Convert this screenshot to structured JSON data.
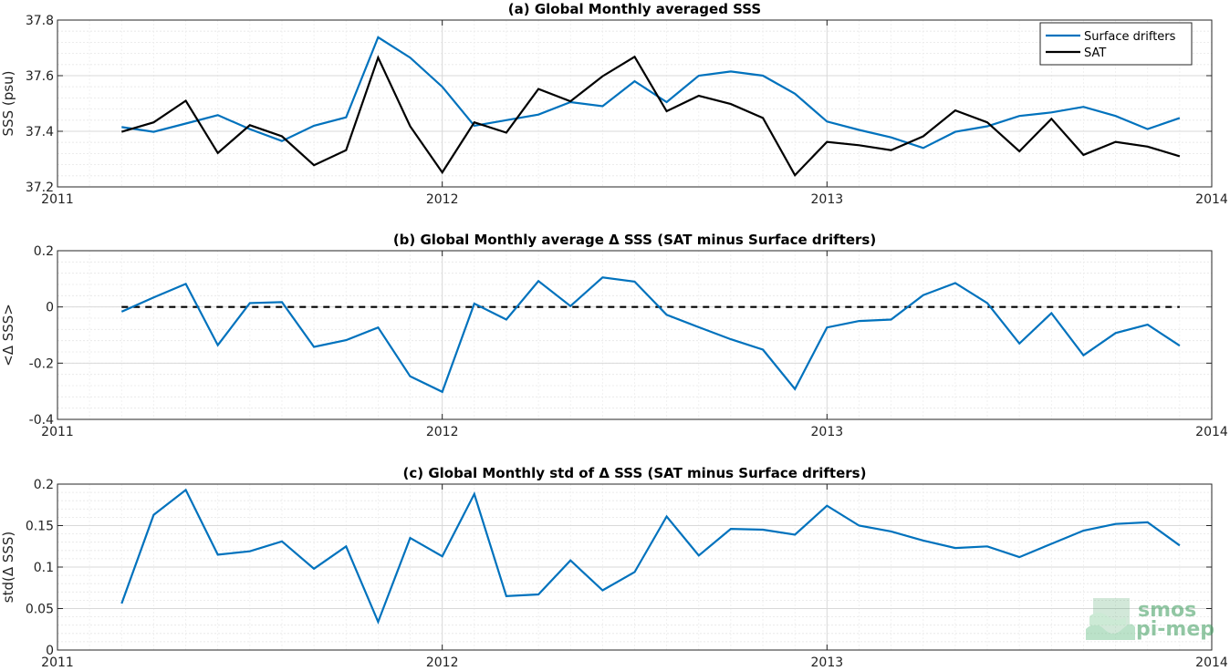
{
  "logo": {
    "line1": "smos",
    "line2": "pi-mep"
  },
  "colors": {
    "drifters": "#0072BD",
    "sat": "#000000",
    "zero_line": "#000000",
    "grid": "#d9d9d9",
    "logo": "#3a9a5a"
  },
  "chart_data": [
    {
      "type": "line",
      "title": "(a) Global Monthly averaged SSS",
      "xlabel": "",
      "ylabel": "SSS (psu)",
      "xlim": [
        2011,
        2014
      ],
      "ylim": [
        37.2,
        37.8
      ],
      "x_ticks": [
        2011,
        2012,
        2013,
        2014
      ],
      "y_ticks": [
        37.2,
        37.4,
        37.6,
        37.8
      ],
      "grid": true,
      "legend": "top-right",
      "x": [
        "2011-03",
        "2011-04",
        "2011-05",
        "2011-06",
        "2011-07",
        "2011-08",
        "2011-09",
        "2011-10",
        "2011-11",
        "2011-12",
        "2012-01",
        "2012-02",
        "2012-03",
        "2012-04",
        "2012-05",
        "2012-06",
        "2012-07",
        "2012-08",
        "2012-09",
        "2012-10",
        "2012-11",
        "2012-12",
        "2013-01",
        "2013-02",
        "2013-03",
        "2013-04",
        "2013-05",
        "2013-06",
        "2013-07",
        "2013-08",
        "2013-09",
        "2013-10",
        "2013-11",
        "2013-12"
      ],
      "series": [
        {
          "name": "Surface drifters",
          "color": "#0072BD",
          "values": [
            37.415,
            37.398,
            37.428,
            37.458,
            37.408,
            37.365,
            37.42,
            37.45,
            37.738,
            37.665,
            37.56,
            37.42,
            37.44,
            37.46,
            37.505,
            37.49,
            37.58,
            37.505,
            37.6,
            37.615,
            37.6,
            37.535,
            37.435,
            37.405,
            37.378,
            37.34,
            37.398,
            37.418,
            37.455,
            37.468,
            37.488,
            37.455,
            37.408,
            37.448
          ]
        },
        {
          "name": "SAT",
          "color": "#000000",
          "values": [
            37.398,
            37.432,
            37.51,
            37.322,
            37.422,
            37.382,
            37.278,
            37.332,
            37.665,
            37.418,
            37.252,
            37.432,
            37.395,
            37.552,
            37.508,
            37.598,
            37.668,
            37.472,
            37.528,
            37.498,
            37.448,
            37.242,
            37.362,
            37.35,
            37.332,
            37.382,
            37.475,
            37.432,
            37.328,
            37.445,
            37.315,
            37.362,
            37.345,
            37.31
          ]
        }
      ]
    },
    {
      "type": "line",
      "title": "(b) Global Monthly average Δ SSS (SAT minus Surface drifters)",
      "xlabel": "",
      "ylabel": "<Δ SSS>",
      "xlim": [
        2011,
        2014
      ],
      "ylim": [
        -0.4,
        0.2
      ],
      "x_ticks": [
        2011,
        2012,
        2013,
        2014
      ],
      "y_ticks": [
        -0.4,
        -0.2,
        0,
        0.2
      ],
      "grid": true,
      "reference_line": 0,
      "x": [
        "2011-03",
        "2011-04",
        "2011-05",
        "2011-06",
        "2011-07",
        "2011-08",
        "2011-09",
        "2011-10",
        "2011-11",
        "2011-12",
        "2012-01",
        "2012-02",
        "2012-03",
        "2012-04",
        "2012-05",
        "2012-06",
        "2012-07",
        "2012-08",
        "2012-09",
        "2012-10",
        "2012-11",
        "2012-12",
        "2013-01",
        "2013-02",
        "2013-03",
        "2013-04",
        "2013-05",
        "2013-06",
        "2013-07",
        "2013-08",
        "2013-09",
        "2013-10",
        "2013-11",
        "2013-12"
      ],
      "series": [
        {
          "color": "#0072BD",
          "values": [
            -0.017,
            0.034,
            0.082,
            -0.136,
            0.014,
            0.017,
            -0.142,
            -0.118,
            -0.073,
            -0.247,
            -0.302,
            0.012,
            -0.045,
            0.092,
            0.003,
            0.105,
            0.09,
            -0.028,
            -0.072,
            -0.115,
            -0.152,
            -0.292,
            -0.073,
            -0.05,
            -0.045,
            0.042,
            0.085,
            0.014,
            -0.13,
            -0.022,
            -0.172,
            -0.093,
            -0.063,
            -0.138
          ]
        }
      ]
    },
    {
      "type": "line",
      "title": "(c) Global Monthly std of Δ SSS (SAT minus Surface drifters)",
      "xlabel": "",
      "ylabel": "std(Δ SSS)",
      "xlim": [
        2011,
        2014
      ],
      "ylim": [
        0,
        0.2
      ],
      "x_ticks": [
        2011,
        2012,
        2013,
        2014
      ],
      "y_ticks": [
        0,
        0.05,
        0.1,
        0.15,
        0.2
      ],
      "grid": true,
      "x": [
        "2011-03",
        "2011-04",
        "2011-05",
        "2011-06",
        "2011-07",
        "2011-08",
        "2011-09",
        "2011-10",
        "2011-11",
        "2011-12",
        "2012-01",
        "2012-02",
        "2012-03",
        "2012-04",
        "2012-05",
        "2012-06",
        "2012-07",
        "2012-08",
        "2012-09",
        "2012-10",
        "2012-11",
        "2012-12",
        "2013-01",
        "2013-02",
        "2013-03",
        "2013-04",
        "2013-05",
        "2013-06",
        "2013-07",
        "2013-08",
        "2013-09",
        "2013-10",
        "2013-11",
        "2013-12"
      ],
      "series": [
        {
          "color": "#0072BD",
          "values": [
            0.056,
            0.163,
            0.193,
            0.115,
            0.119,
            0.131,
            0.098,
            0.125,
            0.034,
            0.135,
            0.113,
            0.188,
            0.065,
            0.067,
            0.108,
            0.072,
            0.094,
            0.161,
            0.114,
            0.146,
            0.145,
            0.139,
            0.174,
            0.15,
            0.143,
            0.132,
            0.123,
            0.125,
            0.112,
            0.128,
            0.144,
            0.152,
            0.154,
            0.126
          ]
        }
      ]
    }
  ]
}
